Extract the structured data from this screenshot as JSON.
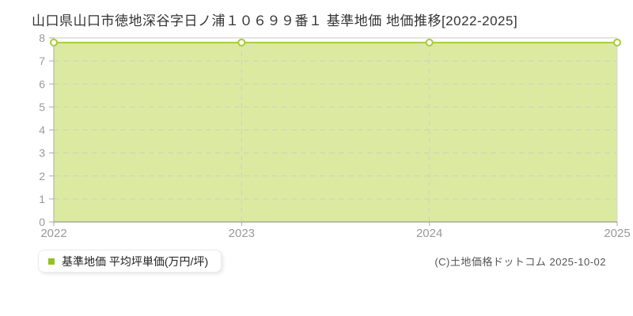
{
  "page": {
    "title": "山口県山口市徳地深谷字日ノ浦１０６９９番１ 基準地価 地価推移[2022-2025]",
    "copyright": "(C)土地価格ドットコム 2025-10-02",
    "background": "#ffffff"
  },
  "legend": {
    "label": "基準地価 平均坪単価(万円/坪)",
    "marker_color": "#94c11f"
  },
  "chart_data": {
    "type": "area",
    "title": "山口県山口市徳地深谷字日ノ浦１０６９９番１ 基準地価 地価推移[2022-2025]",
    "categories": [
      "2022",
      "2023",
      "2024",
      "2025"
    ],
    "series": [
      {
        "name": "基準地価 平均坪単価(万円/坪)",
        "values": [
          7.8,
          7.8,
          7.8,
          7.8
        ]
      }
    ],
    "xlabel": "",
    "ylabel": "",
    "ylim": [
      0,
      8
    ],
    "yticks": [
      0,
      1,
      2,
      3,
      4,
      5,
      6,
      7,
      8
    ],
    "grid": true,
    "legend_position": "bottom-left",
    "colors": {
      "line": "#a9cb3c",
      "fill": "#dce9a0",
      "marker_fill": "#ffffff",
      "grid": "#c9c9c9",
      "border_top": "#c8c8c8",
      "border_right": "#d8d8d8",
      "axis_left": "#aaaaaa",
      "axis_bottom": "#888888",
      "tick": "#aaaaaa",
      "tick_label": "#999999"
    }
  }
}
